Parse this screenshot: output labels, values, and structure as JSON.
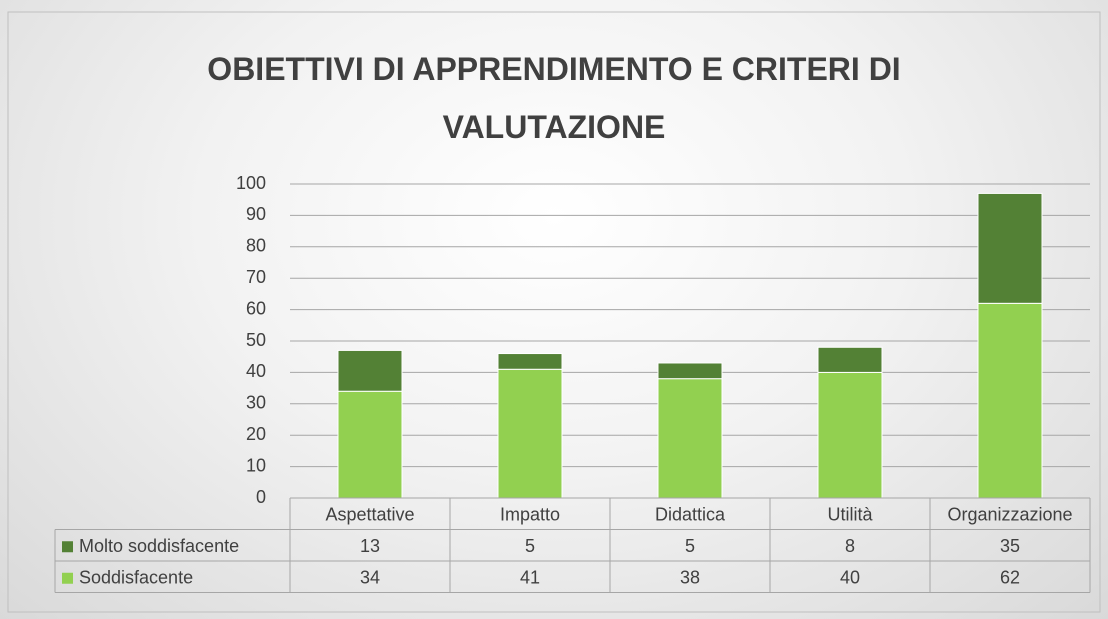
{
  "chart_data": {
    "type": "stacked_bar",
    "title": "OBIETTIVI DI APPRENDIMENTO E CRITERI DI VALUTAZIONE",
    "categories": [
      "Aspettative",
      "Impatto",
      "Didattica",
      "Utilità",
      "Organizzazione"
    ],
    "series": [
      {
        "name": "Molto soddisfacente",
        "color": "#538135",
        "values": [
          13,
          5,
          5,
          8,
          35
        ]
      },
      {
        "name": "Soddisfacente",
        "color": "#92d050",
        "values": [
          34,
          41,
          38,
          40,
          62
        ]
      }
    ],
    "ylim": [
      0,
      100
    ],
    "yticks": [
      0,
      10,
      20,
      30,
      40,
      50,
      60,
      70,
      80,
      90,
      100
    ],
    "grid": true
  }
}
